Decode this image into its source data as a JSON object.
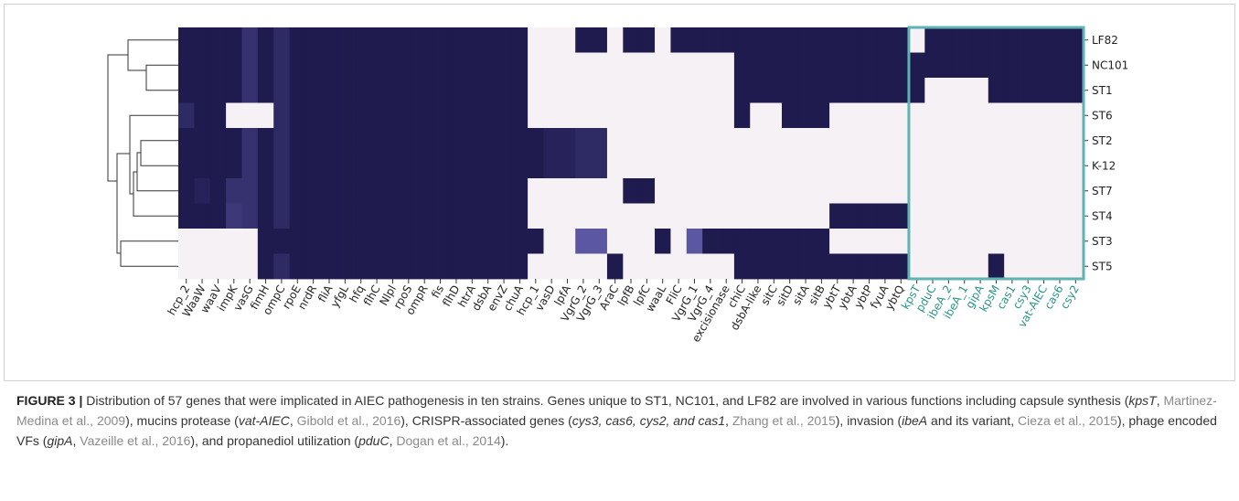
{
  "chart_data": {
    "type": "heatmap",
    "rows": [
      "LF82",
      "NC101",
      "ST1",
      "ST6",
      "ST2",
      "K-12",
      "ST7",
      "ST4",
      "ST3",
      "ST5"
    ],
    "columns": [
      "hcp_2",
      "WaaW",
      "waaV",
      "impK",
      "vasG",
      "fimH",
      "ompC",
      "rpoE",
      "nrdR",
      "fliA",
      "yfgL",
      "hfq",
      "flhC",
      "Nlpl",
      "rpoS",
      "ompR",
      "fis",
      "flhD",
      "htrA",
      "dsbA",
      "envZ",
      "chuA",
      "hcp_1",
      "vasD",
      "lpfA",
      "VgrG_2",
      "VgrG_3",
      "AraC",
      "lpfB",
      "lpfC",
      "waaL",
      "FliC",
      "VgrG_1",
      "VgrG_4",
      "excisionase",
      "chiC",
      "dsbA-like",
      "sitC",
      "sitD",
      "sitA",
      "sitB",
      "ybtT",
      "ybtA",
      "ybtP",
      "fyuA",
      "ybtQ",
      "kpsT",
      "pduC",
      "ibeA_2",
      "ibeA_1",
      "gipA",
      "kpsM",
      "cas1",
      "csy3",
      "vat-AIEC",
      "cas6",
      "csy2"
    ],
    "values": [
      [
        1,
        1,
        1,
        1,
        0.85,
        1,
        0.9,
        1,
        1,
        1,
        1,
        1,
        1,
        1,
        1,
        1,
        1,
        1,
        1,
        1,
        1,
        1,
        0,
        0,
        0,
        1,
        1,
        0,
        1,
        1,
        0,
        1,
        1,
        1,
        1,
        1,
        1,
        1,
        1,
        1,
        1,
        1,
        1,
        1,
        1,
        1,
        0,
        1,
        1,
        1,
        1,
        1,
        1,
        1,
        1,
        1,
        1
      ],
      [
        1,
        1,
        1,
        1,
        0.85,
        1,
        0.9,
        1,
        1,
        1,
        1,
        1,
        1,
        1,
        1,
        1,
        1,
        1,
        1,
        1,
        1,
        1,
        0,
        0,
        0,
        0,
        0,
        0,
        0,
        0,
        0,
        0,
        0,
        0,
        0,
        1,
        1,
        1,
        1,
        1,
        1,
        1,
        1,
        1,
        1,
        1,
        1,
        1,
        1,
        1,
        1,
        1,
        1,
        1,
        1,
        1,
        1
      ],
      [
        1,
        1,
        1,
        1,
        0.85,
        1,
        0.9,
        1,
        1,
        1,
        1,
        1,
        1,
        1,
        1,
        1,
        1,
        1,
        1,
        1,
        1,
        1,
        0,
        0,
        0,
        0,
        0,
        0,
        0,
        0,
        0,
        0,
        0,
        0,
        0,
        1,
        1,
        1,
        1,
        1,
        1,
        1,
        1,
        1,
        1,
        1,
        1,
        0,
        0,
        0,
        0,
        1,
        1,
        1,
        1,
        1,
        1
      ],
      [
        0.9,
        1,
        1,
        0,
        0,
        0,
        0.9,
        1,
        1,
        1,
        1,
        1,
        1,
        1,
        1,
        1,
        1,
        1,
        1,
        1,
        1,
        1,
        0,
        0,
        0,
        0,
        0,
        0,
        0,
        0,
        0,
        0,
        0,
        0,
        0,
        1,
        0,
        0,
        1,
        1,
        1,
        0,
        0,
        0,
        0,
        0,
        0,
        0,
        0,
        0,
        0,
        0,
        0,
        0,
        0,
        0,
        0
      ],
      [
        1,
        1,
        1,
        1,
        0.85,
        1,
        0.9,
        1,
        1,
        1,
        1,
        1,
        1,
        1,
        1,
        1,
        1,
        1,
        1,
        1,
        1,
        1,
        1,
        0.95,
        0.95,
        0.9,
        0.9,
        0,
        0,
        0,
        0,
        0,
        0,
        0,
        0,
        0,
        0,
        0,
        0,
        0,
        0,
        0,
        0,
        0,
        0,
        0,
        0,
        0,
        0,
        0,
        0,
        0,
        0,
        0,
        0,
        0,
        0
      ],
      [
        1,
        1,
        1,
        1,
        0.85,
        1,
        0.9,
        1,
        1,
        1,
        1,
        1,
        1,
        1,
        1,
        1,
        1,
        1,
        1,
        1,
        1,
        1,
        1,
        0.95,
        0.95,
        0.9,
        0.9,
        0,
        0,
        0,
        0,
        0,
        0,
        0,
        0,
        0,
        0,
        0,
        0,
        0,
        0,
        0,
        0,
        0,
        0,
        0,
        0,
        0,
        0,
        0,
        0,
        0,
        0,
        0,
        0,
        0,
        0
      ],
      [
        1,
        0.95,
        1,
        0.85,
        0.85,
        1,
        0.9,
        1,
        1,
        1,
        1,
        1,
        1,
        1,
        1,
        1,
        1,
        1,
        1,
        1,
        1,
        1,
        0,
        0,
        0,
        0,
        0,
        0,
        1,
        1,
        0,
        0,
        0,
        0,
        0,
        0,
        0,
        0,
        0,
        0,
        0,
        0,
        0,
        0,
        0,
        0,
        0,
        0,
        0,
        0,
        0,
        0,
        0,
        0,
        0,
        0,
        0
      ],
      [
        1,
        1,
        1,
        0.8,
        0.85,
        1,
        0.9,
        1,
        1,
        1,
        1,
        1,
        1,
        1,
        1,
        1,
        1,
        1,
        1,
        1,
        1,
        1,
        0,
        0,
        0,
        0,
        0,
        0,
        0,
        0,
        0,
        0,
        0,
        0,
        0,
        0,
        0,
        0,
        0,
        0,
        0,
        1,
        1,
        1,
        1,
        1,
        0,
        0,
        0,
        0,
        0,
        0,
        0,
        0,
        0,
        0,
        0
      ],
      [
        0,
        0,
        0,
        0,
        0,
        1,
        1,
        1,
        1,
        1,
        1,
        1,
        1,
        1,
        1,
        1,
        1,
        1,
        1,
        1,
        1,
        1,
        1,
        0,
        0,
        0.6,
        0.6,
        0,
        0,
        0,
        1,
        0,
        0.6,
        1,
        1,
        1,
        1,
        1,
        1,
        1,
        1,
        0,
        0,
        0,
        0,
        0,
        0,
        0,
        0,
        0,
        0,
        0,
        0,
        0,
        0,
        0,
        0
      ],
      [
        0,
        0,
        0,
        0,
        0,
        1,
        0.9,
        1,
        1,
        1,
        1,
        1,
        1,
        1,
        1,
        1,
        1,
        1,
        1,
        1,
        1,
        1,
        0,
        0,
        0,
        0,
        0,
        1,
        0,
        0,
        0,
        0,
        0,
        0,
        0,
        1,
        1,
        1,
        1,
        1,
        1,
        1,
        1,
        1,
        1,
        1,
        0,
        0,
        0,
        0,
        0,
        1,
        0,
        0,
        0,
        0,
        0
      ]
    ],
    "colors": [
      "#f6f1f5",
      "#6a66b8",
      "#1f1b4f"
    ],
    "highlight_from": 46,
    "highlight_color": "#5fb3b3",
    "highlight_label_color": "#2a9386"
  },
  "caption": {
    "label": "FIGURE 3 |",
    "parts": [
      {
        "text": " Distribution of 57 genes that were implicated in AIEC pathogenesis in ten strains. Genes unique to ST1, NC101, and LF82 are involved in various functions including capsule synthesis (",
        "style": "plain"
      },
      {
        "text": "kpsT",
        "style": "italic"
      },
      {
        "text": ", ",
        "style": "plain"
      },
      {
        "text": "Martinez-Medina et al., 2009",
        "style": "citation"
      },
      {
        "text": "), mucins protease (",
        "style": "plain"
      },
      {
        "text": "vat-AIEC",
        "style": "italic"
      },
      {
        "text": ", ",
        "style": "plain"
      },
      {
        "text": "Gibold et al., 2016",
        "style": "citation"
      },
      {
        "text": "), CRISPR-associated genes (",
        "style": "plain"
      },
      {
        "text": "cys3, cas6, cys2, and cas1",
        "style": "italic"
      },
      {
        "text": ", ",
        "style": "plain"
      },
      {
        "text": "Zhang et al., 2015",
        "style": "citation"
      },
      {
        "text": "), invasion (",
        "style": "plain"
      },
      {
        "text": "ibeA",
        "style": "italic"
      },
      {
        "text": " and its variant, ",
        "style": "plain"
      },
      {
        "text": "Cieza et al., 2015",
        "style": "citation"
      },
      {
        "text": "), phage encoded VFs (",
        "style": "plain"
      },
      {
        "text": "gipA",
        "style": "italic"
      },
      {
        "text": ", ",
        "style": "plain"
      },
      {
        "text": "Vazeille et al., 2016",
        "style": "citation"
      },
      {
        "text": "), and propanediol utilization (",
        "style": "plain"
      },
      {
        "text": "pduC",
        "style": "italic"
      },
      {
        "text": ", ",
        "style": "plain"
      },
      {
        "text": "Dogan et al., 2014",
        "style": "citation"
      },
      {
        "text": ").",
        "style": "plain"
      }
    ]
  }
}
